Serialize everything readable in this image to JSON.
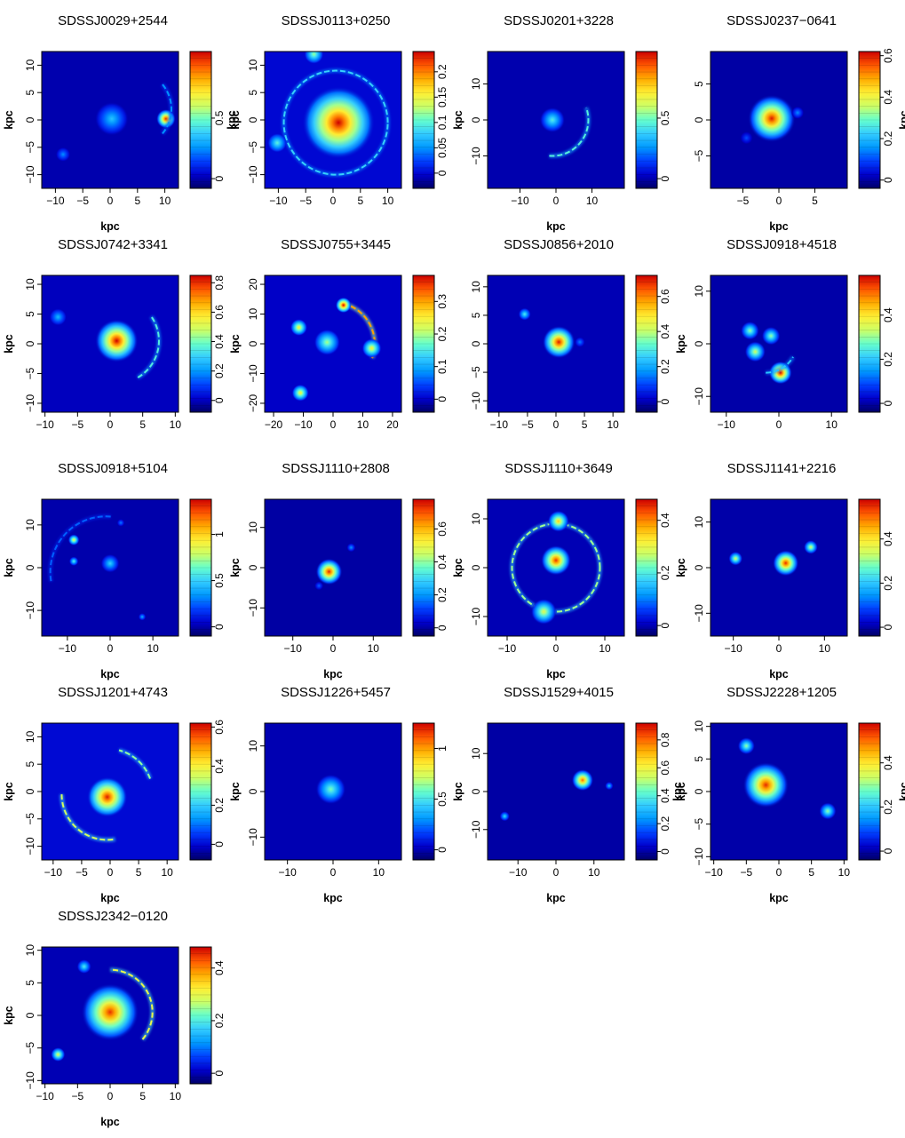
{
  "colorbar_colors": [
    "#000066",
    "#0000cc",
    "#0040ff",
    "#0099ff",
    "#33ccff",
    "#66ffcc",
    "#ccff66",
    "#ffee33",
    "#ffaa00",
    "#ff5500",
    "#cc0000"
  ],
  "panel_order": [
    "SDSSJ0029+2544",
    "SDSSJ0113+0250",
    "SDSSJ0201+3228",
    "SDSSJ0237-0641",
    "SDSSJ0742+3341",
    "SDSSJ0755+3445",
    "SDSSJ0856+2010",
    "SDSSJ0918+4518",
    "SDSSJ0918+5104",
    "SDSSJ1110+2808",
    "SDSSJ1110+3649",
    "SDSSJ1141+2216",
    "SDSSJ1201+4743",
    "SDSSJ1226+5457",
    "SDSSJ1529+4015",
    "SDSSJ2228+1205",
    "SDSSJ2342-0120"
  ],
  "chart_data": [
    {
      "type": "heatmap",
      "title": "SDSSJ0029+2544",
      "xlabel": "kpc",
      "ylabel": "kpc",
      "colorbar_label": "kpc",
      "xlim": [
        -12.5,
        12.5
      ],
      "ylim": [
        -12.5,
        12.5
      ],
      "xticks": [
        -10,
        -5,
        0,
        5,
        10
      ],
      "yticks": [
        -10,
        -5,
        0,
        5,
        10
      ],
      "cbar_lim": [
        -0.08,
        1.05
      ],
      "cbar_ticks": [
        0,
        0.5
      ],
      "features": [
        {
          "kind": "blob",
          "x": 0.3,
          "y": 0.2,
          "peak": 0.35,
          "r": 1.4
        },
        {
          "kind": "blob",
          "x": 10.2,
          "y": 0.2,
          "peak": 1.0,
          "r": 0.8
        },
        {
          "kind": "arc",
          "x": 4.2,
          "y": 2.0,
          "radius": 7.0,
          "from": -40,
          "to": 40,
          "peak": 0.25
        },
        {
          "kind": "blob",
          "x": -8.6,
          "y": -6.3,
          "peak": 0.25,
          "r": 0.6
        }
      ]
    },
    {
      "type": "heatmap",
      "title": "SDSSJ0113+0250",
      "xlabel": "",
      "ylabel": "kpc",
      "colorbar_label": "kpc",
      "xlim": [
        -12.5,
        12.5
      ],
      "ylim": [
        -12.5,
        12.5
      ],
      "xticks": [
        -10,
        -5,
        0,
        5,
        10
      ],
      "yticks": [
        -10,
        -5,
        0,
        5,
        10
      ],
      "cbar_lim": [
        -0.03,
        0.24
      ],
      "cbar_ticks": [
        0,
        0.05,
        0.1,
        0.15,
        0.2
      ],
      "features": [
        {
          "kind": "blob",
          "x": 1.0,
          "y": -0.5,
          "peak": 0.24,
          "r": 3.0
        },
        {
          "kind": "ring",
          "x": 0.5,
          "y": -0.5,
          "radius": 9.5,
          "peak": 0.08
        },
        {
          "kind": "blob",
          "x": -3.5,
          "y": 12.0,
          "peak": 0.12,
          "r": 0.8
        },
        {
          "kind": "blob",
          "x": -10.2,
          "y": -4.2,
          "peak": 0.1,
          "r": 0.8
        }
      ]
    },
    {
      "type": "heatmap",
      "title": "SDSSJ0201+3228",
      "xlabel": "kpc",
      "ylabel": "",
      "colorbar_label": "",
      "xlim": [
        -19,
        19
      ],
      "ylim": [
        -19,
        19
      ],
      "xticks": [
        -10,
        0,
        10
      ],
      "yticks": [
        -10,
        0,
        10
      ],
      "cbar_lim": [
        -0.08,
        1.05
      ],
      "cbar_ticks": [
        0,
        0.5
      ],
      "features": [
        {
          "kind": "blob",
          "x": -1.0,
          "y": 0.0,
          "peak": 0.45,
          "r": 1.6
        },
        {
          "kind": "arc",
          "x": -1.0,
          "y": 0.0,
          "radius": 10.0,
          "from": -95,
          "to": 20,
          "peak": 0.45
        }
      ]
    },
    {
      "type": "heatmap",
      "title": "SDSSJ0237−0641",
      "xlabel": "kpc",
      "ylabel": "",
      "colorbar_label": "kpc",
      "xlim": [
        -9.5,
        9.5
      ],
      "ylim": [
        -9.5,
        9.5
      ],
      "xticks": [
        -5,
        0,
        5
      ],
      "yticks": [
        -5,
        0,
        5
      ],
      "cbar_lim": [
        -0.04,
        0.62
      ],
      "cbar_ticks": [
        0,
        0.2,
        0.4,
        0.6
      ],
      "features": [
        {
          "kind": "blob",
          "x": -1.0,
          "y": 0.2,
          "peak": 0.6,
          "r": 1.5
        },
        {
          "kind": "blob",
          "x": 2.6,
          "y": 1.0,
          "peak": 0.15,
          "r": 0.4
        },
        {
          "kind": "blob",
          "x": -4.5,
          "y": -2.5,
          "peak": 0.1,
          "r": 0.4
        }
      ]
    },
    {
      "type": "heatmap",
      "title": "SDSSJ0742+3341",
      "xlabel": "",
      "ylabel": "kpc",
      "colorbar_label": "kpc",
      "xlim": [
        -10.5,
        10.5
      ],
      "ylim": [
        -11.5,
        11.5
      ],
      "xticks": [
        -10,
        -5,
        0,
        5,
        10
      ],
      "yticks": [
        -10,
        -5,
        0,
        5,
        10
      ],
      "cbar_lim": [
        -0.08,
        0.85
      ],
      "cbar_ticks": [
        0,
        0.2,
        0.4,
        0.6,
        0.8
      ],
      "features": [
        {
          "kind": "blob",
          "x": 1.0,
          "y": 0.5,
          "peak": 0.85,
          "r": 1.5
        },
        {
          "kind": "arc",
          "x": 1.0,
          "y": 0.5,
          "radius": 6.5,
          "from": -60,
          "to": 35,
          "peak": 0.35
        },
        {
          "kind": "blob",
          "x": -8.0,
          "y": 4.5,
          "peak": 0.25,
          "r": 0.6
        }
      ]
    },
    {
      "type": "heatmap",
      "title": "SDSSJ0755+3445",
      "xlabel": "",
      "ylabel": "",
      "colorbar_label": "",
      "xlim": [
        -23,
        23
      ],
      "ylim": [
        -23,
        23
      ],
      "xticks": [
        -20,
        -10,
        0,
        10,
        20
      ],
      "yticks": [
        -20,
        -10,
        0,
        10,
        20
      ],
      "cbar_lim": [
        -0.04,
        0.38
      ],
      "cbar_ticks": [
        0,
        0.1,
        0.2,
        0.3
      ],
      "features": [
        {
          "kind": "blob",
          "x": -2.0,
          "y": 0.5,
          "peak": 0.2,
          "r": 2.0
        },
        {
          "kind": "arc",
          "x": 0.0,
          "y": 0.0,
          "radius": 14.0,
          "from": -20,
          "to": 75,
          "peak": 0.3
        },
        {
          "kind": "blob",
          "x": -11.5,
          "y": 5.5,
          "peak": 0.25,
          "r": 1.3
        },
        {
          "kind": "blob",
          "x": -11.0,
          "y": -16.5,
          "peak": 0.25,
          "r": 1.3
        },
        {
          "kind": "blob",
          "x": 13.0,
          "y": -1.5,
          "peak": 0.25,
          "r": 1.5
        },
        {
          "kind": "blob",
          "x": 3.5,
          "y": 13.0,
          "peak": 0.38,
          "r": 1.2
        }
      ]
    },
    {
      "type": "heatmap",
      "title": "SDSSJ0856+2010",
      "xlabel": "",
      "ylabel": "",
      "colorbar_label": "kpc",
      "xlim": [
        -12,
        12
      ],
      "ylim": [
        -12,
        12
      ],
      "xticks": [
        -10,
        -5,
        0,
        5,
        10
      ],
      "yticks": [
        -10,
        -5,
        0,
        5,
        10
      ],
      "cbar_lim": [
        -0.06,
        0.72
      ],
      "cbar_ticks": [
        0,
        0.2,
        0.4,
        0.6
      ],
      "features": [
        {
          "kind": "blob",
          "x": 0.5,
          "y": 0.3,
          "peak": 0.7,
          "r": 1.3
        },
        {
          "kind": "blob",
          "x": -5.5,
          "y": 5.2,
          "peak": 0.3,
          "r": 0.5
        },
        {
          "kind": "blob",
          "x": 4.2,
          "y": 0.3,
          "peak": 0.15,
          "r": 0.4
        }
      ]
    },
    {
      "type": "heatmap",
      "title": "SDSSJ0918+4518",
      "xlabel": "",
      "ylabel": "",
      "colorbar_label": "",
      "xlim": [
        -13,
        13
      ],
      "ylim": [
        -13,
        13
      ],
      "xticks": [
        -10,
        0,
        10
      ],
      "yticks": [
        -10,
        0,
        10
      ],
      "cbar_lim": [
        -0.04,
        0.58
      ],
      "cbar_ticks": [
        0,
        0.2,
        0.4
      ],
      "features": [
        {
          "kind": "blob",
          "x": -5.5,
          "y": 2.5,
          "peak": 0.3,
          "r": 0.8
        },
        {
          "kind": "blob",
          "x": -1.5,
          "y": 1.5,
          "peak": 0.3,
          "r": 0.8
        },
        {
          "kind": "blob",
          "x": -4.5,
          "y": -1.5,
          "peak": 0.35,
          "r": 0.9
        },
        {
          "kind": "blob",
          "x": 0.3,
          "y": -5.5,
          "peak": 0.58,
          "r": 1.0
        },
        {
          "kind": "arc",
          "x": -2.5,
          "y": 0.5,
          "radius": 6.0,
          "from": -90,
          "to": -30,
          "peak": 0.2
        }
      ]
    },
    {
      "type": "heatmap",
      "title": "SDSSJ0918+5104",
      "xlabel": "kpc",
      "ylabel": "kpc",
      "colorbar_label": "kpc",
      "xlim": [
        -16,
        16
      ],
      "ylim": [
        -16,
        16
      ],
      "xticks": [
        -10,
        0,
        10
      ],
      "yticks": [
        -10,
        0,
        10
      ],
      "cbar_lim": [
        -0.1,
        1.38
      ],
      "cbar_ticks": [
        0,
        0.5,
        1
      ],
      "features": [
        {
          "kind": "blob",
          "x": 0.0,
          "y": 1.0,
          "peak": 0.5,
          "r": 1.0
        },
        {
          "kind": "arc",
          "x": -1.0,
          "y": -1.0,
          "radius": 13.0,
          "from": 85,
          "to": 190,
          "peak": 0.25
        },
        {
          "kind": "blob",
          "x": -8.5,
          "y": 6.5,
          "peak": 0.9,
          "r": 0.6
        },
        {
          "kind": "blob",
          "x": -8.5,
          "y": 1.5,
          "peak": 0.6,
          "r": 0.5
        },
        {
          "kind": "blob",
          "x": 7.5,
          "y": -11.5,
          "peak": 0.4,
          "r": 0.4
        },
        {
          "kind": "blob",
          "x": 2.5,
          "y": 10.5,
          "peak": 0.3,
          "r": 0.4
        }
      ]
    },
    {
      "type": "heatmap",
      "title": "SDSSJ1110+2808",
      "xlabel": "kpc",
      "ylabel": "",
      "colorbar_label": "kpc",
      "xlim": [
        -17,
        17
      ],
      "ylim": [
        -17,
        17
      ],
      "xticks": [
        -10,
        0,
        10
      ],
      "yticks": [
        -10,
        0,
        10
      ],
      "cbar_lim": [
        -0.05,
        0.78
      ],
      "cbar_ticks": [
        0,
        0.2,
        0.4,
        0.6
      ],
      "features": [
        {
          "kind": "blob",
          "x": -1.0,
          "y": -1.0,
          "peak": 0.75,
          "r": 1.5
        },
        {
          "kind": "blob",
          "x": 4.5,
          "y": 5.0,
          "peak": 0.2,
          "r": 0.5
        },
        {
          "kind": "blob",
          "x": -3.5,
          "y": -4.5,
          "peak": 0.15,
          "r": 0.5
        }
      ]
    },
    {
      "type": "heatmap",
      "title": "SDSSJ1110+3649",
      "xlabel": "kpc",
      "ylabel": "",
      "colorbar_label": "kpc",
      "xlim": [
        -14,
        14
      ],
      "ylim": [
        -14,
        14
      ],
      "xticks": [
        -10,
        0,
        10
      ],
      "yticks": [
        -10,
        0,
        10
      ],
      "cbar_lim": [
        -0.04,
        0.48
      ],
      "cbar_ticks": [
        0,
        0.2,
        0.4
      ],
      "features": [
        {
          "kind": "blob",
          "x": 0.0,
          "y": 1.5,
          "peak": 0.45,
          "r": 1.4
        },
        {
          "kind": "ring",
          "x": 0.0,
          "y": 0.0,
          "radius": 9.0,
          "peak": 0.25
        },
        {
          "kind": "blob",
          "x": 0.5,
          "y": 9.5,
          "peak": 0.35,
          "r": 1.0
        },
        {
          "kind": "blob",
          "x": -2.5,
          "y": -9.0,
          "peak": 0.3,
          "r": 1.2
        }
      ]
    },
    {
      "type": "heatmap",
      "title": "SDSSJ1141+2216",
      "xlabel": "kpc",
      "ylabel": "",
      "colorbar_label": "",
      "xlim": [
        -15,
        15
      ],
      "ylim": [
        -15,
        15
      ],
      "xticks": [
        -10,
        0,
        10
      ],
      "yticks": [
        -10,
        0,
        10
      ],
      "cbar_lim": [
        -0.04,
        0.58
      ],
      "cbar_ticks": [
        0,
        0.2,
        0.4
      ],
      "features": [
        {
          "kind": "blob",
          "x": 1.5,
          "y": 1.0,
          "peak": 0.55,
          "r": 1.3
        },
        {
          "kind": "blob",
          "x": -9.5,
          "y": 2.0,
          "peak": 0.35,
          "r": 0.7
        },
        {
          "kind": "blob",
          "x": 7.0,
          "y": 4.5,
          "peak": 0.35,
          "r": 0.7
        }
      ]
    },
    {
      "type": "heatmap",
      "title": "SDSSJ1201+4743",
      "xlabel": "kpc",
      "ylabel": "kpc",
      "colorbar_label": "kpc",
      "xlim": [
        -12,
        12
      ],
      "ylim": [
        -12.5,
        12.5
      ],
      "xticks": [
        -10,
        -5,
        0,
        5,
        10
      ],
      "yticks": [
        -10,
        -5,
        0,
        5,
        10
      ],
      "cbar_lim": [
        -0.08,
        0.62
      ],
      "cbar_ticks": [
        0,
        0.2,
        0.4,
        0.6
      ],
      "features": [
        {
          "kind": "blob",
          "x": -0.5,
          "y": -1.0,
          "peak": 0.6,
          "r": 1.6
        },
        {
          "kind": "arc",
          "x": -0.5,
          "y": -0.5,
          "radius": 8.0,
          "from": 180,
          "to": 280,
          "peak": 0.35
        },
        {
          "kind": "arc",
          "x": -0.5,
          "y": -0.5,
          "radius": 8.0,
          "from": 20,
          "to": 75,
          "peak": 0.3
        }
      ]
    },
    {
      "type": "heatmap",
      "title": "SDSSJ1226+5457",
      "xlabel": "kpc",
      "ylabel": "",
      "colorbar_label": "kpc",
      "xlim": [
        -15,
        15
      ],
      "ylim": [
        -15,
        15
      ],
      "xticks": [
        -10,
        0,
        10
      ],
      "yticks": [
        -10,
        0,
        10
      ],
      "cbar_lim": [
        -0.1,
        1.25
      ],
      "cbar_ticks": [
        0,
        0.5,
        1
      ],
      "features": [
        {
          "kind": "blob",
          "x": -0.5,
          "y": 0.5,
          "peak": 0.6,
          "r": 1.5
        }
      ]
    },
    {
      "type": "heatmap",
      "title": "SDSSJ1529+4015",
      "xlabel": "kpc",
      "ylabel": "",
      "colorbar_label": "kpc",
      "xlim": [
        -18,
        18
      ],
      "ylim": [
        -18,
        18
      ],
      "xticks": [
        -10,
        0,
        10
      ],
      "yticks": [
        -10,
        0,
        10
      ],
      "cbar_lim": [
        -0.06,
        0.92
      ],
      "cbar_ticks": [
        0,
        0.2,
        0.4,
        0.6,
        0.8
      ],
      "features": [
        {
          "kind": "blob",
          "x": 7.0,
          "y": 3.0,
          "peak": 0.8,
          "r": 1.3
        },
        {
          "kind": "blob",
          "x": 14.0,
          "y": 1.5,
          "peak": 0.3,
          "r": 0.5
        },
        {
          "kind": "blob",
          "x": -13.5,
          "y": -6.5,
          "peak": 0.35,
          "r": 0.6
        }
      ]
    },
    {
      "type": "heatmap",
      "title": "SDSSJ2228+1205",
      "xlabel": "kpc",
      "ylabel": "kpc",
      "colorbar_label": "kpc",
      "xlim": [
        -10.5,
        10.5
      ],
      "ylim": [
        -10.5,
        10.5
      ],
      "xticks": [
        -10,
        -5,
        0,
        5,
        10
      ],
      "yticks": [
        -10,
        -5,
        0,
        5,
        10
      ],
      "cbar_lim": [
        -0.04,
        0.58
      ],
      "cbar_ticks": [
        0,
        0.2,
        0.4
      ],
      "features": [
        {
          "kind": "blob",
          "x": -2.0,
          "y": 1.0,
          "peak": 0.55,
          "r": 1.6
        },
        {
          "kind": "blob",
          "x": -5.0,
          "y": 7.0,
          "peak": 0.3,
          "r": 0.6
        },
        {
          "kind": "blob",
          "x": 7.5,
          "y": -3.0,
          "peak": 0.3,
          "r": 0.6
        }
      ]
    },
    {
      "type": "heatmap",
      "title": "SDSSJ2342−0120",
      "xlabel": "kpc",
      "ylabel": "kpc",
      "colorbar_label": "",
      "xlim": [
        -10.5,
        10.5
      ],
      "ylim": [
        -10.5,
        10.5
      ],
      "xticks": [
        -10,
        -5,
        0,
        5,
        10
      ],
      "yticks": [
        -10,
        -5,
        0,
        5,
        10
      ],
      "cbar_lim": [
        -0.04,
        0.48
      ],
      "cbar_ticks": [
        0,
        0.2,
        0.4
      ],
      "features": [
        {
          "kind": "blob",
          "x": 0.0,
          "y": 0.5,
          "peak": 0.45,
          "r": 2.0
        },
        {
          "kind": "arc",
          "x": 0.0,
          "y": 0.5,
          "radius": 6.5,
          "from": -40,
          "to": 90,
          "peak": 0.3
        },
        {
          "kind": "blob",
          "x": -8.0,
          "y": -6.0,
          "peak": 0.3,
          "r": 0.5
        },
        {
          "kind": "blob",
          "x": -4.0,
          "y": 7.5,
          "peak": 0.2,
          "r": 0.5
        }
      ]
    }
  ]
}
